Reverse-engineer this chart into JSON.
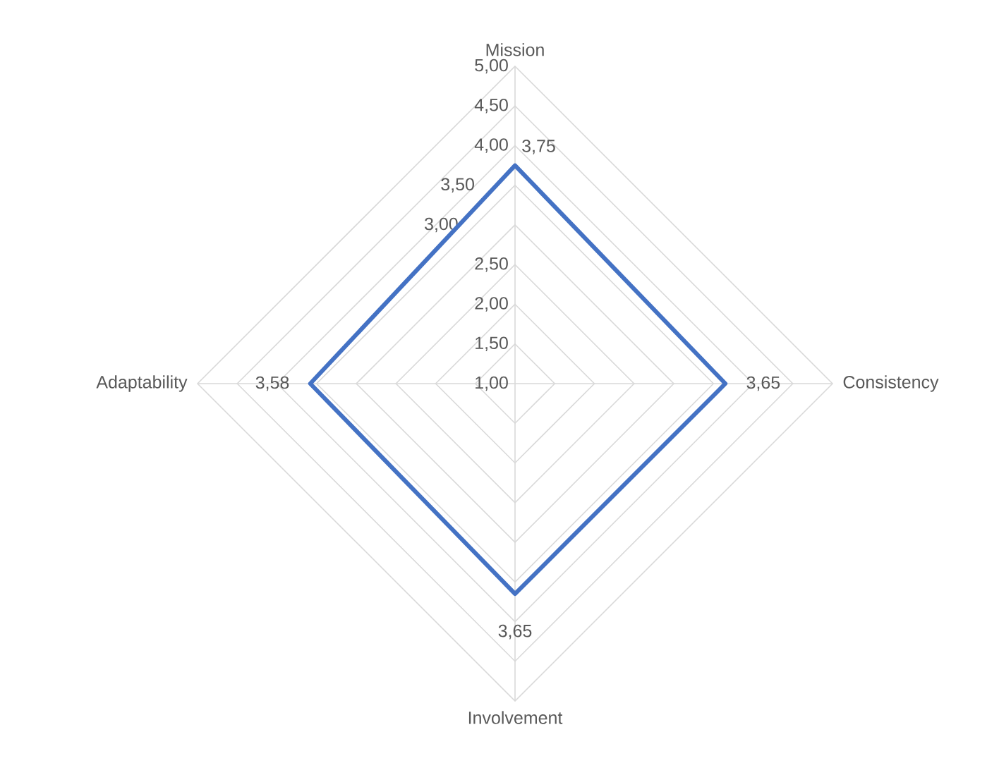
{
  "chart_data": {
    "type": "radar",
    "categories": [
      "Mission",
      "Consistency",
      "Involvement",
      "Adaptability"
    ],
    "series": [
      {
        "color": "#4472c4",
        "values": [
          3.75,
          3.65,
          3.65,
          3.58
        ],
        "value_labels": [
          "3,75",
          "3,65",
          "3,65",
          "3,58"
        ]
      }
    ],
    "ylim": [
      1,
      5
    ],
    "yticks": [
      {
        "value": 1,
        "label": "1,00"
      },
      {
        "value": 1.5,
        "label": "1,50"
      },
      {
        "value": 2,
        "label": "2,00"
      },
      {
        "value": 2.5,
        "label": "2,50"
      },
      {
        "value": 3,
        "label": "3,00"
      },
      {
        "value": 3.5,
        "label": "3,50"
      },
      {
        "value": 4,
        "label": "4,00"
      },
      {
        "value": 4.5,
        "label": "4,50"
      },
      {
        "value": 5,
        "label": "5,00"
      }
    ],
    "grid": true,
    "marker": "none",
    "line_style": "solid"
  }
}
